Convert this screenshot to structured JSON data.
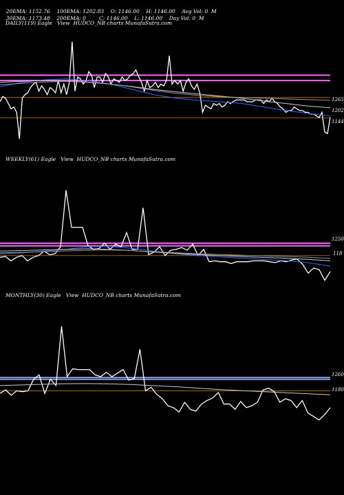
{
  "header": {
    "row1": [
      "20EMA: 1152.76",
      "100EMA: 1202.83",
      "O: 1146.00",
      "H: 1146.00",
      "Avg Vol: 0  M"
    ],
    "row2": [
      "30EMA: 1173.48",
      "200EMA: 0",
      "C: 1146.00",
      "L: 1146.00",
      "Day Vol: 0  M"
    ]
  },
  "panels": [
    {
      "id": "daily",
      "title": "DAILY(119) Eagle   View  HUDCO_NB charts MunafaSutra.com",
      "labels": [
        "1265",
        "1202",
        "1144"
      ]
    },
    {
      "id": "weekly",
      "title": "WEEKLY(61) Eagle   View  HUDCO_NB charts MunafaSutra.com",
      "labels": [
        "1250",
        "118"
      ]
    },
    {
      "id": "monthly",
      "title": "MONTHLY(30) Eagle   View  HUDCO_NB charts MunafaSutra.com",
      "labels": [
        "1260",
        "1180"
      ]
    }
  ],
  "chart_data": [
    {
      "type": "line",
      "panel": "daily",
      "ylim": [
        1050,
        1400
      ],
      "levels": [
        {
          "value": 1265,
          "color": "#ff66ff"
        },
        {
          "value": 1250,
          "color": "#ff66ff"
        },
        {
          "value": 1202,
          "color": "#cc7700"
        },
        {
          "value": 1144,
          "color": "#cc7700"
        }
      ],
      "series": [
        {
          "color": "#ffffff",
          "values": [
            1190,
            1205,
            1200,
            1185,
            1170,
            1175,
            1160,
            1085,
            1200,
            1210,
            1215,
            1230,
            1240,
            1245,
            1220,
            1235,
            1225,
            1210,
            1230,
            1225,
            1215,
            1250,
            1215,
            1240,
            1210,
            1245,
            1360,
            1220,
            1260,
            1255,
            1240,
            1250,
            1275,
            1265,
            1230,
            1260,
            1260,
            1245,
            1270,
            1260,
            1240,
            1255,
            1250,
            1245,
            1260,
            1250,
            1255,
            1265,
            1270,
            1280,
            1260,
            1245,
            1220,
            1250,
            1230,
            1235,
            1245,
            1230,
            1240,
            1235,
            1250,
            1320,
            1240,
            1250,
            1240,
            1250,
            1220,
            1245,
            1255,
            1235,
            1225,
            1240,
            1215,
            1160,
            1180,
            1175,
            1170,
            1185,
            1180,
            1185,
            1175,
            1180,
            1190,
            1185,
            1190,
            1195,
            1195,
            1195,
            1195,
            1190,
            1190,
            1190,
            1195,
            1195,
            1195,
            1185,
            1195,
            1190,
            1200,
            1190,
            1185,
            1175,
            1170,
            1160,
            1165,
            1165,
            1175,
            1170,
            1165,
            1165,
            1160,
            1160,
            1155,
            1155,
            1150,
            1145,
            1160,
            1105,
            1100,
            1146
          ]
        },
        {
          "color": "#3366ff",
          "values": [
            1232,
            1245,
            1252,
            1255,
            1250,
            1240,
            1225,
            1210,
            1200,
            1194,
            1190,
            1185,
            1175,
            1165,
            1157,
            1150
          ]
        },
        {
          "color": "#cccccc",
          "values": [
            1245,
            1248,
            1250,
            1248,
            1245,
            1240,
            1233,
            1225,
            1218,
            1212,
            1206,
            1200,
            1192,
            1185,
            1178,
            1173
          ]
        },
        {
          "color": "#999999",
          "values": [
            1238,
            1242,
            1246,
            1248,
            1246,
            1240,
            1232,
            1222,
            1214,
            1208,
            1204,
            1202,
            1200,
            1198,
            1196,
            1194
          ]
        }
      ]
    },
    {
      "type": "line",
      "panel": "weekly",
      "ylim": [
        1000,
        1700
      ],
      "levels": [
        {
          "value": 1250,
          "color": "#ff66ff"
        },
        {
          "value": 1235,
          "color": "#ff66ff"
        },
        {
          "value": 1180,
          "color": "#cc7700"
        }
      ],
      "series": [
        {
          "color": "#ffffff",
          "values": [
            1170,
            1175,
            1150,
            1170,
            1180,
            1150,
            1170,
            1180,
            1205,
            1185,
            1190,
            1230,
            1550,
            1340,
            1340,
            1340,
            1235,
            1215,
            1220,
            1250,
            1215,
            1245,
            1230,
            1310,
            1215,
            1215,
            1450,
            1185,
            1200,
            1230,
            1180,
            1210,
            1215,
            1225,
            1210,
            1245,
            1180,
            1215,
            1145,
            1150,
            1145,
            1145,
            1135,
            1145,
            1145,
            1145,
            1150,
            1150,
            1150,
            1145,
            1140,
            1150,
            1145,
            1155,
            1160,
            1130,
            1080,
            1110,
            1100,
            1040,
            1090
          ]
        },
        {
          "color": "#3366ff",
          "values": [
            1190,
            1195,
            1205,
            1215,
            1230,
            1232,
            1220,
            1205,
            1190,
            1180,
            1172,
            1165,
            1158,
            1150,
            1140,
            1120
          ]
        },
        {
          "color": "#cccccc",
          "values": [
            1205,
            1208,
            1212,
            1215,
            1218,
            1215,
            1208,
            1200,
            1192,
            1185,
            1180,
            1174,
            1169,
            1165,
            1158,
            1150
          ]
        },
        {
          "color": "#999999",
          "values": [
            1195,
            1198,
            1202,
            1206,
            1210,
            1212,
            1208,
            1202,
            1196,
            1190,
            1186,
            1182,
            1178,
            1175,
            1170,
            1164
          ]
        }
      ]
    },
    {
      "type": "line",
      "panel": "monthly",
      "ylim": [
        1000,
        1700
      ],
      "levels": [
        {
          "value": 1260,
          "color": "#8899dd"
        },
        {
          "value": 1250,
          "color": "#8899dd"
        },
        {
          "value": 1185,
          "color": "#cc7700"
        }
      ],
      "series": [
        {
          "color": "#ffffff",
          "values": [
            1170,
            1190,
            1160,
            1185,
            1180,
            1185,
            1250,
            1275,
            1170,
            1250,
            1215,
            1550,
            1265,
            1310,
            1305,
            1305,
            1305,
            1275,
            1265,
            1290,
            1265,
            1285,
            1305,
            1245,
            1255,
            1420,
            1185,
            1205,
            1165,
            1140,
            1100,
            1090,
            1065,
            1120,
            1080,
            1070,
            1110,
            1130,
            1145,
            1175,
            1110,
            1110,
            1080,
            1125,
            1090,
            1100,
            1120,
            1190,
            1200,
            1180,
            1120,
            1140,
            1130,
            1090,
            1130,
            1060,
            1040,
            1020,
            1050,
            1090
          ]
        },
        {
          "color": "#cccccc",
          "values": [
            1215,
            1218,
            1222,
            1225,
            1226,
            1224,
            1220,
            1214,
            1208,
            1200,
            1192,
            1186,
            1180,
            1174,
            1168,
            1162
          ]
        }
      ]
    }
  ]
}
